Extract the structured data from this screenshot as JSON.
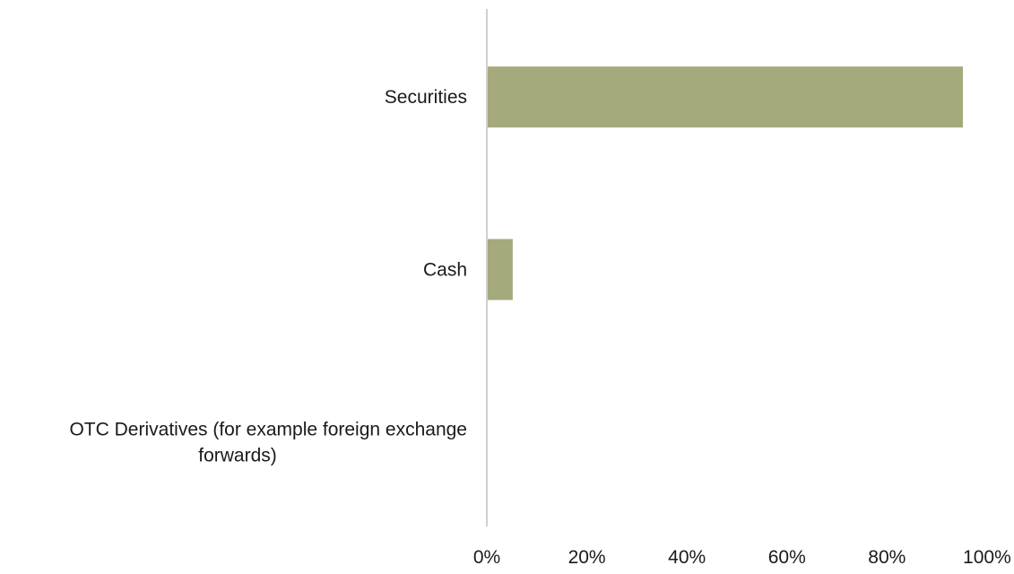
{
  "chart_data": {
    "type": "bar",
    "orientation": "horizontal",
    "categories": [
      [
        "Securities"
      ],
      [
        "Cash"
      ],
      [
        "OTC Derivatives (for example foreign exchange",
        "forwards)"
      ]
    ],
    "values": [
      95,
      5,
      0
    ],
    "value_unit": "%",
    "xlim": [
      0,
      100
    ],
    "x_ticks": [
      "0%",
      "20%",
      "40%",
      "60%",
      "80%",
      "100%"
    ],
    "title": "",
    "xlabel": "",
    "ylabel": "",
    "grid": false,
    "legend": "none",
    "bar_color": "#a5a97c",
    "axis_color": "#d0d0d0"
  }
}
